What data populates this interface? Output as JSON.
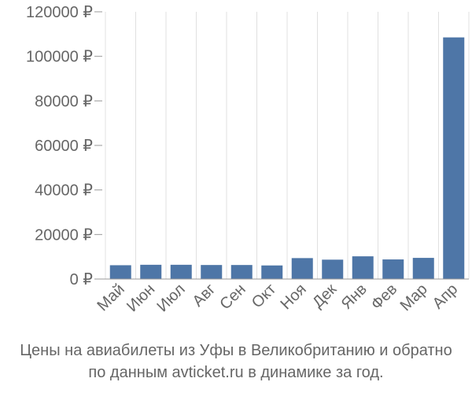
{
  "chart_data": {
    "type": "bar",
    "categories": [
      "Май",
      "Июн",
      "Июл",
      "Авг",
      "Сен",
      "Окт",
      "Ноя",
      "Дек",
      "Янв",
      "Фев",
      "Мар",
      "Апр"
    ],
    "values": [
      6200,
      6400,
      6400,
      6300,
      6300,
      6100,
      9400,
      8700,
      10200,
      8800,
      9500,
      108500
    ],
    "ylim": [
      0,
      120000
    ],
    "yticks": [
      0,
      20000,
      40000,
      60000,
      80000,
      100000,
      120000
    ],
    "ytick_labels": [
      "0 ₽",
      "20000 ₽",
      "40000 ₽",
      "60000 ₽",
      "80000 ₽",
      "100000 ₽",
      "120000 ₽"
    ],
    "grid": "vertical",
    "bar_color": "#4e76a7",
    "grid_color": "#e0e0e0",
    "axis_color": "#999999",
    "text_color": "#666666"
  },
  "caption": {
    "line1": "Цены на авиабилеты из Уфы в Великобританию и обратно",
    "line2": "по данным avticket.ru в динамике за год."
  }
}
